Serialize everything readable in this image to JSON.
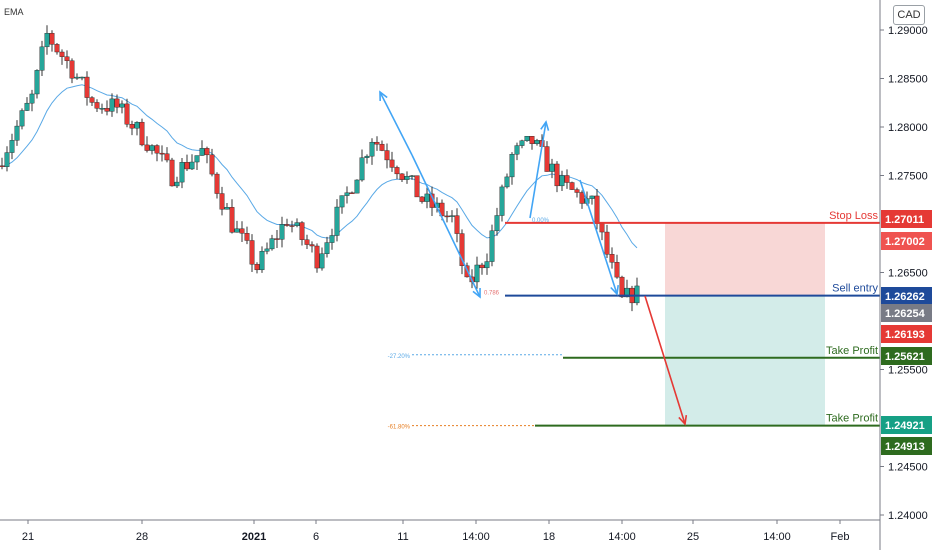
{
  "indicator_label": "EMA",
  "currency": "CAD",
  "chart_data": {
    "type": "candlestick",
    "y_ticks": [
      "1.29000",
      "1.28500",
      "1.28000",
      "1.27500",
      "1.26500",
      "1.25500",
      "1.24500",
      "1.24000"
    ],
    "x_ticks": [
      "21",
      "28",
      "2021",
      "6",
      "11",
      "14:00",
      "18",
      "14:00",
      "25",
      "14:00",
      "Feb"
    ],
    "ylim": [
      1.239,
      1.2935
    ],
    "price_labels": [
      {
        "value": "1.27011",
        "color": "#e53935"
      },
      {
        "value": "1.27002",
        "color": "#ef5350"
      },
      {
        "value": "1.26262",
        "color": "#1e4a9a"
      },
      {
        "value": "1.26254",
        "color": "#787b86"
      },
      {
        "value": "1.26193",
        "color": "#e53935"
      },
      {
        "value": "1.25621",
        "color": "#2e6b1f"
      },
      {
        "value": "1.24921",
        "color": "#16a085"
      },
      {
        "value": "1.24913",
        "color": "#2e6b1f"
      }
    ],
    "levels": [
      {
        "label": "Stop Loss",
        "price": 1.27011,
        "color": "#e53935"
      },
      {
        "label": "Sell entry",
        "price": 1.26262,
        "color": "#1e4a9a"
      },
      {
        "label": "Take Profit",
        "price": 1.25621,
        "color": "#2e6b1f"
      },
      {
        "label": "Take Profit",
        "price": 1.24921,
        "color": "#2e6b1f"
      }
    ],
    "fib_labels": [
      "-27.20%",
      "-61.80%",
      "0.786",
      "0.00%"
    ],
    "colors": {
      "up": "#26a69a",
      "down": "#e53935",
      "ema": "#5aa9e6",
      "arrow_blue": "#42a5f5",
      "arrow_red": "#e53935"
    }
  }
}
